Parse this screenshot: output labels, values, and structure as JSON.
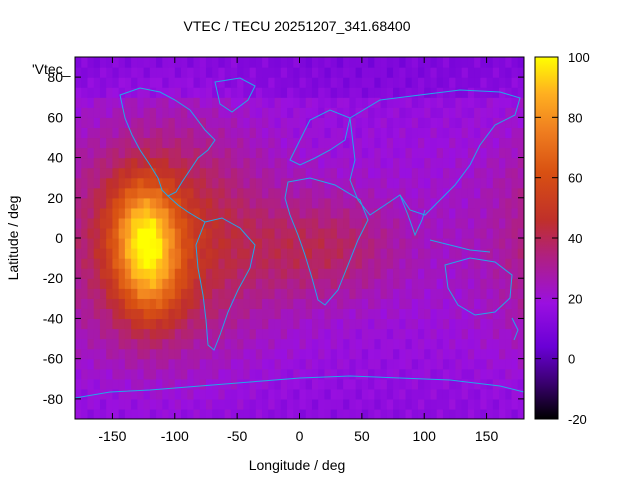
{
  "chart_data": {
    "type": "heatmap",
    "title": "VTEC / TECU 20251207_341.68400",
    "xlabel": "Longitude / deg",
    "ylabel": "Latitude / deg",
    "xlim": [
      -180,
      180
    ],
    "ylim": [
      -90,
      90
    ],
    "xticks": [
      -150,
      -100,
      -50,
      0,
      50,
      100,
      150
    ],
    "yticks": [
      -80,
      -60,
      -40,
      -20,
      0,
      20,
      40,
      60,
      80
    ],
    "colorbar": {
      "range": [
        -20,
        100
      ],
      "ticks": [
        -20,
        0,
        20,
        40,
        60,
        80,
        100
      ]
    },
    "legend_entry": "'Vtec_",
    "grid": false,
    "colors": {
      "low": "#000000",
      "mid_low": "#6a00d6",
      "mid": "#a020f0",
      "mid_high": "#c0302a",
      "high": "#f08020",
      "top": "#ffff00",
      "coastline": "#22a8e8"
    },
    "features": [
      {
        "name": "peak",
        "lon": -125,
        "lat": 5,
        "value": 85
      },
      {
        "name": "secondary-peak",
        "lon": -120,
        "lat": -20,
        "value": 75
      }
    ]
  }
}
